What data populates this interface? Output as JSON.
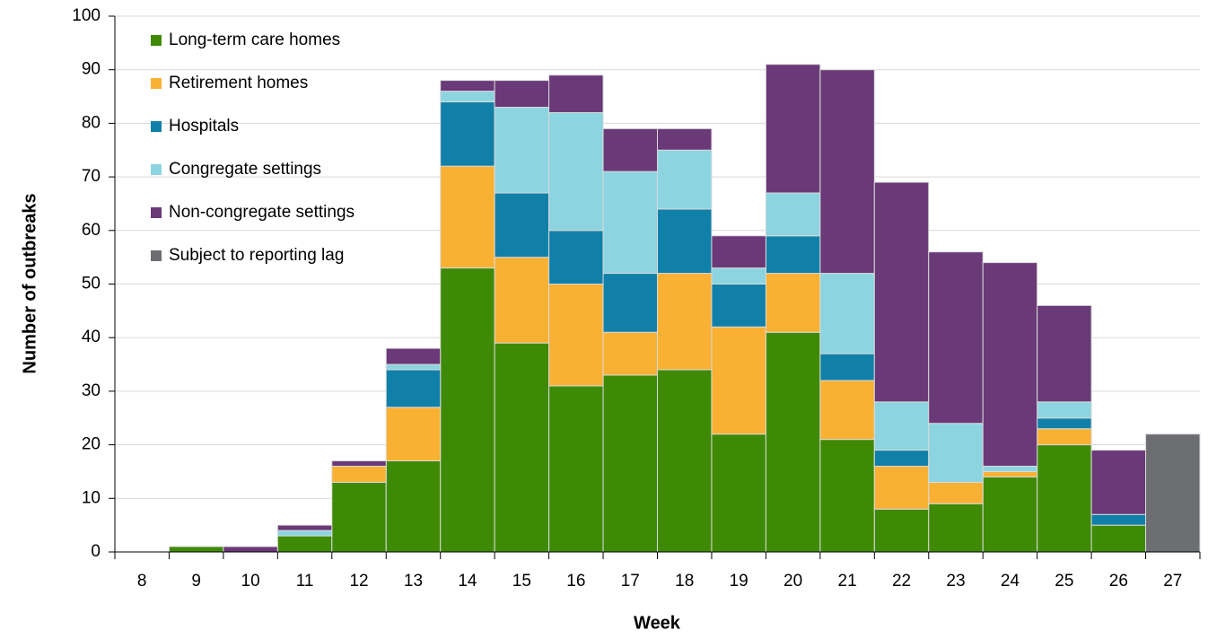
{
  "chart_data": {
    "type": "stacked_bar",
    "x_label": "Week",
    "y_label": "Number of outbreaks",
    "categories": [
      "8",
      "9",
      "10",
      "11",
      "12",
      "13",
      "14",
      "15",
      "16",
      "17",
      "18",
      "19",
      "20",
      "21",
      "22",
      "23",
      "24",
      "25",
      "26",
      "27"
    ],
    "series": [
      {
        "name": "Long-term care homes",
        "color": "#3f8a04",
        "values": [
          0,
          1,
          0,
          3,
          13,
          17,
          53,
          39,
          31,
          33,
          34,
          22,
          41,
          21,
          8,
          9,
          14,
          20,
          5,
          0
        ]
      },
      {
        "name": "Retirement homes",
        "color": "#f9b134",
        "values": [
          0,
          0,
          0,
          0,
          3,
          10,
          19,
          16,
          19,
          8,
          18,
          20,
          11,
          11,
          8,
          4,
          1,
          3,
          0,
          0
        ]
      },
      {
        "name": "Hospitals",
        "color": "#1180a8",
        "values": [
          0,
          0,
          0,
          0,
          0,
          7,
          12,
          12,
          10,
          11,
          12,
          8,
          7,
          5,
          3,
          0,
          0,
          2,
          2,
          0
        ]
      },
      {
        "name": "Congregate settings",
        "color": "#8cd5e0",
        "values": [
          0,
          0,
          0,
          1,
          0,
          1,
          2,
          16,
          22,
          19,
          11,
          3,
          8,
          15,
          9,
          11,
          1,
          3,
          0,
          0
        ]
      },
      {
        "name": "Non-congregate settings",
        "color": "#6a3978",
        "values": [
          0,
          0,
          1,
          1,
          1,
          3,
          2,
          5,
          7,
          8,
          4,
          6,
          24,
          38,
          41,
          32,
          38,
          18,
          12,
          0
        ]
      },
      {
        "name": "Subject to reporting lag",
        "color": "#6d6e71",
        "values": [
          0,
          0,
          0,
          0,
          0,
          0,
          0,
          0,
          0,
          0,
          0,
          0,
          0,
          0,
          0,
          0,
          0,
          0,
          0,
          22
        ]
      }
    ],
    "ylim": [
      0,
      100
    ],
    "yticks": [
      0,
      10,
      20,
      30,
      40,
      50,
      60,
      70,
      80,
      90,
      100
    ],
    "grid": true,
    "legend": "upper left"
  }
}
